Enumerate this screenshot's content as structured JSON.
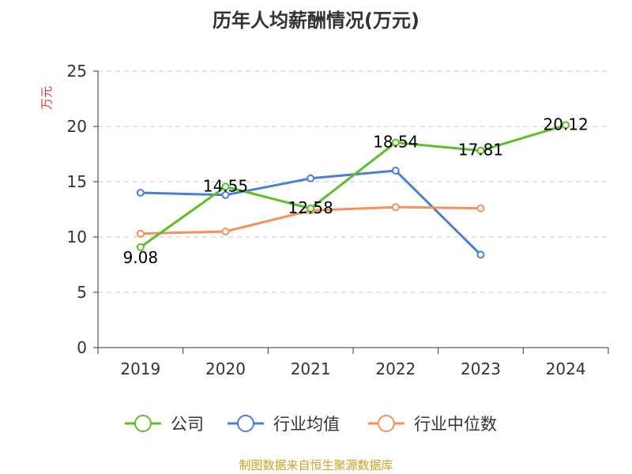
{
  "chart_data": {
    "type": "line",
    "title": "历年人均薪酬情况(万元)",
    "xlabel": "",
    "ylabel": "万元",
    "categories": [
      "2019",
      "2020",
      "2021",
      "2022",
      "2023",
      "2024"
    ],
    "ylim": [
      0,
      25
    ],
    "yticks": [
      0,
      5,
      10,
      15,
      20,
      25
    ],
    "grid": true,
    "legend_position": "bottom",
    "series": [
      {
        "name": "公司",
        "color": "#5cbf2a",
        "values": [
          9.08,
          14.55,
          12.58,
          18.54,
          17.81,
          20.12
        ],
        "labels": [
          "9.08",
          "14.55",
          "12.58",
          "18.54",
          "17.81",
          "20.12"
        ]
      },
      {
        "name": "行业均值",
        "color": "#4a7fd6",
        "values": [
          14.0,
          13.8,
          15.3,
          16.0,
          8.4,
          null
        ],
        "labels": null
      },
      {
        "name": "行业中位数",
        "color": "#f5915a",
        "values": [
          10.3,
          10.5,
          12.4,
          12.7,
          12.6,
          null
        ],
        "labels": null
      }
    ]
  },
  "footer": {
    "source_text": "制图数据来自恒生聚源数据库",
    "color": "#c9a227"
  },
  "ylabel_color": "#e03030"
}
